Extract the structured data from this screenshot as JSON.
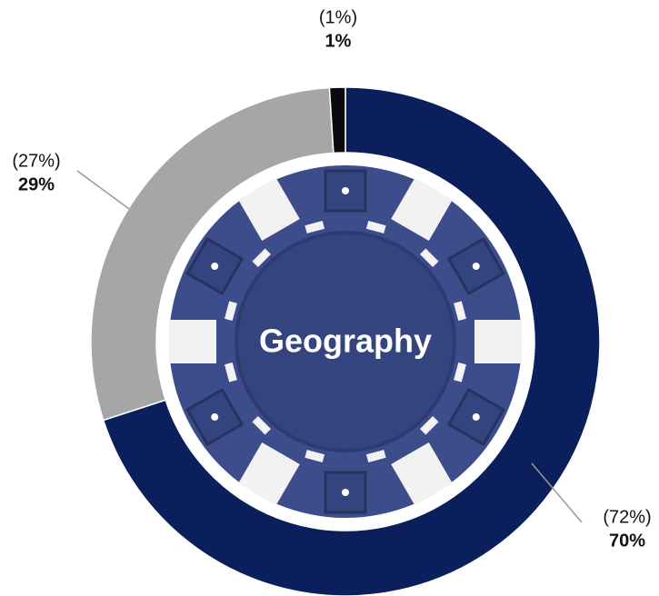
{
  "chart_data": {
    "type": "donut",
    "title": "Geography",
    "values": [
      70,
      29,
      1
    ],
    "value_labels": [
      "70%",
      "29%",
      "1%"
    ],
    "comparison_labels": [
      "(72%)",
      "(27%)",
      "(1%)"
    ],
    "colors": [
      "#0b1f5c",
      "#a6a6a6",
      "#0a0a0a"
    ]
  }
}
